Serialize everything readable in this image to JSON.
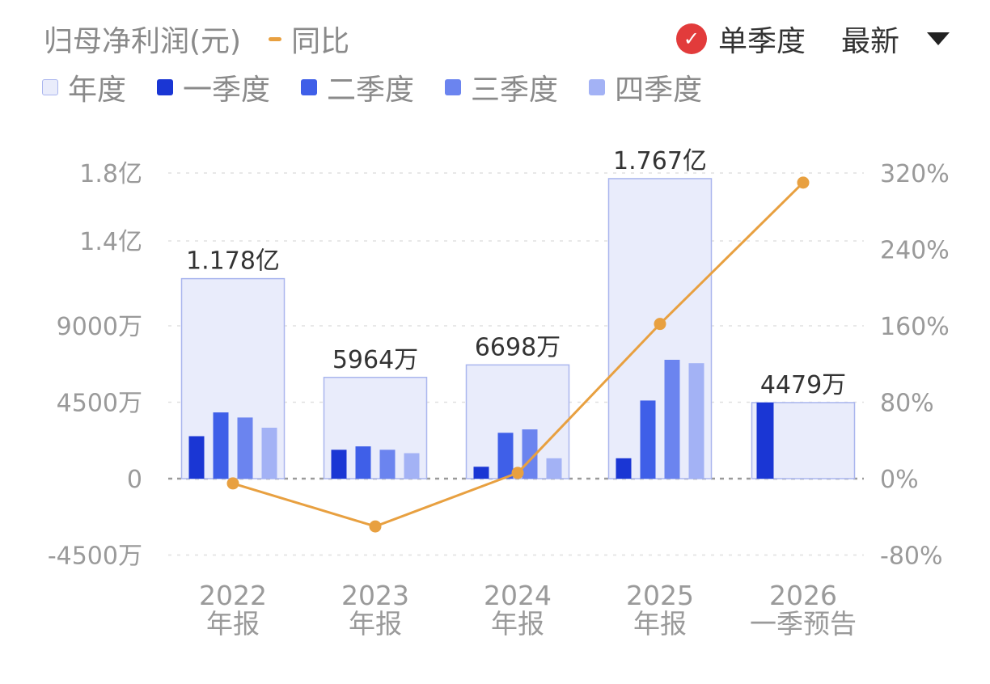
{
  "header": {
    "title": "归母净利润(元)",
    "yoy_label": "同比",
    "mode_label": "单季度",
    "sort_label": "最新"
  },
  "legend": [
    {
      "label": "年度"
    },
    {
      "label": "一季度"
    },
    {
      "label": "二季度"
    },
    {
      "label": "三季度"
    },
    {
      "label": "四季度"
    }
  ],
  "colors": {
    "annual_fill": "#e9ecfb",
    "annual_stroke": "#aab6ee",
    "q1": "#1a36d4",
    "q2": "#3f5fe8",
    "q3": "#6b84ef",
    "q4": "#a3b2f5",
    "yoy": "#e8a040",
    "check": "#e23b3b",
    "grid": "#e0e0e0",
    "zero": "#9a9a9a"
  },
  "chart_data": {
    "type": "bar",
    "categories": [
      {
        "line1": "2022",
        "line2": "年报"
      },
      {
        "line1": "2023",
        "line2": "年报"
      },
      {
        "line1": "2024",
        "line2": "年报"
      },
      {
        "line1": "2025",
        "line2": "年报"
      },
      {
        "line1": "2026",
        "line2": "一季预告"
      }
    ],
    "annual_values": [
      11780,
      5964,
      6698,
      17670,
      4479
    ],
    "annual_labels": [
      "1.178亿",
      "5964万",
      "6698万",
      "1.767亿",
      "4479万"
    ],
    "quarterly_series": [
      {
        "name": "一季度",
        "values": [
          2500,
          1700,
          700,
          1200,
          4479
        ]
      },
      {
        "name": "二季度",
        "values": [
          3900,
          1900,
          2700,
          4600,
          null
        ]
      },
      {
        "name": "三季度",
        "values": [
          3600,
          1700,
          2900,
          7000,
          null
        ]
      },
      {
        "name": "四季度",
        "values": [
          3000,
          1500,
          1200,
          6800,
          null
        ]
      }
    ],
    "yoy_series": {
      "name": "同比",
      "values": [
        -5,
        -50,
        6,
        162,
        310
      ]
    },
    "y_left": {
      "ticks": [
        18000,
        14000,
        9000,
        4500,
        0,
        -4500
      ],
      "tick_labels": [
        "1.8亿",
        "1.4亿",
        "9000万",
        "4500万",
        "0",
        "-4500万"
      ],
      "range": [
        -4500,
        18000
      ]
    },
    "y_right": {
      "ticks": [
        320,
        240,
        160,
        80,
        0,
        -80
      ],
      "tick_labels": [
        "320%",
        "240%",
        "160%",
        "80%",
        "0%",
        "-80%"
      ],
      "range": [
        -80,
        320
      ]
    },
    "grid": true
  }
}
